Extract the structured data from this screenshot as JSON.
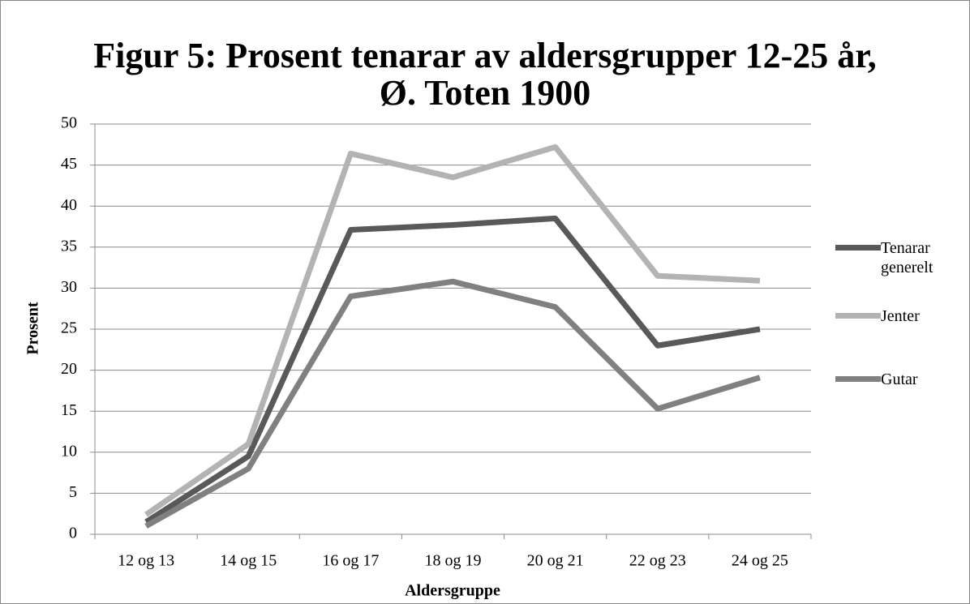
{
  "chart_data": {
    "type": "line",
    "title": "Figur 5: Prosent tenarar av aldersgrupper 12-25 år, Ø. Toten 1900",
    "xlabel": "Aldersgruppe",
    "ylabel": "Prosent",
    "categories": [
      "12 og 13",
      "14 og 15",
      "16 og 17",
      "18 og 19",
      "20 og 21",
      "22 og 23",
      "24 og 25"
    ],
    "series": [
      {
        "name": "Tenarar generelt",
        "color": "#595959",
        "values": [
          1.5,
          9.5,
          37.1,
          37.7,
          38.5,
          23,
          25
        ]
      },
      {
        "name": "Jenter",
        "color": "#b3b3b3",
        "values": [
          2.4,
          11,
          46.4,
          43.5,
          47.2,
          31.5,
          30.9
        ]
      },
      {
        "name": "Gutar",
        "color": "#808080",
        "values": [
          1,
          8,
          29,
          30.8,
          27.7,
          15.3,
          19.1
        ]
      }
    ],
    "ylim": [
      0,
      50
    ],
    "yticks": [
      0,
      5,
      10,
      15,
      20,
      25,
      30,
      35,
      40,
      45,
      50
    ],
    "grid": true,
    "legend": "right"
  }
}
